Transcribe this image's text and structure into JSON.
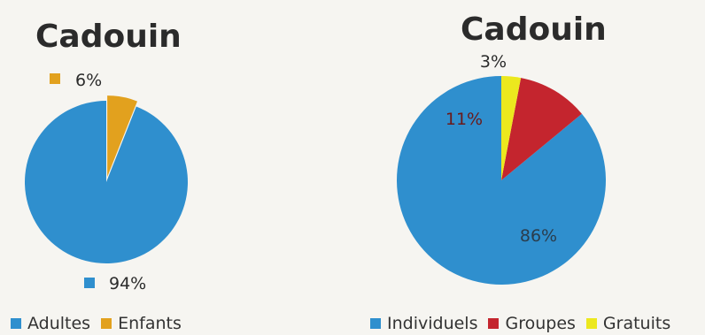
{
  "chart_data": [
    {
      "type": "pie",
      "title": "Cadouin",
      "categories": [
        "Adultes",
        "Enfants"
      ],
      "values": [
        94,
        6
      ],
      "labels": [
        "94%",
        "6%"
      ],
      "colors": [
        "#2f8fce",
        "#e2a11e"
      ],
      "legend_position": "bottom"
    },
    {
      "type": "pie",
      "title": "Cadouin",
      "categories": [
        "Individuels",
        "Groupes",
        "Gratuits"
      ],
      "values": [
        86,
        11,
        3
      ],
      "labels": [
        "86%",
        "11%",
        "3%"
      ],
      "colors": [
        "#2f8fce",
        "#c4252e",
        "#ece81e"
      ],
      "legend_position": "bottom"
    }
  ]
}
